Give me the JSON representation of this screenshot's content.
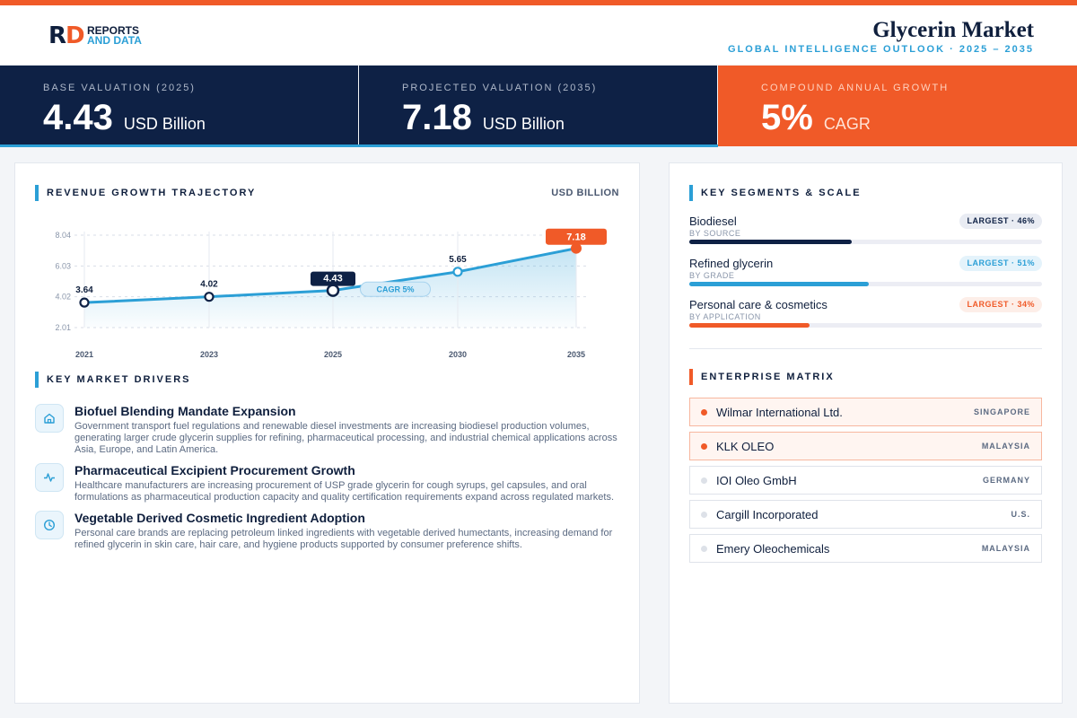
{
  "brand": {
    "logo_line1": "REPORTS",
    "logo_line2": "AND DATA"
  },
  "header": {
    "title": "Glycerin Market",
    "subtitle": "GLOBAL INTELLIGENCE OUTLOOK  ·  2025 – 2035"
  },
  "kpis": [
    {
      "label": "BASE VALUATION (2025)",
      "value": "4.43",
      "unit": "USD Billion"
    },
    {
      "label": "PROJECTED VALUATION (2035)",
      "value": "7.18",
      "unit": "USD Billion"
    },
    {
      "label": "COMPOUND ANNUAL GROWTH",
      "value": "5%",
      "unit": "CAGR"
    }
  ],
  "chart_section": {
    "title": "REVENUE GROWTH TRAJECTORY",
    "unit": "USD BILLION"
  },
  "chart_data": {
    "type": "line",
    "title": "",
    "x": [
      "2021",
      "2023",
      "2025",
      "2030",
      "2035"
    ],
    "series": [
      {
        "values": [
          3.64,
          4.02,
          4.43,
          5.65,
          7.18
        ]
      }
    ],
    "data_labels": [
      "3.64",
      "4.02",
      "4.43",
      "5.65",
      "7.18"
    ],
    "yticks": [
      "2.01",
      "4.02",
      "6.03",
      "8.04"
    ],
    "ylim": [
      2.01,
      8.04
    ],
    "grid": true,
    "annotation": "CAGR 5%",
    "colors": {
      "line": "#2b9fd6",
      "highlight": "#0e2145",
      "end": "#f05a28"
    }
  },
  "drivers_section": {
    "title": "KEY MARKET DRIVERS"
  },
  "drivers": [
    {
      "icon": "home-icon",
      "title": "Biofuel Blending Mandate Expansion",
      "desc": "Government transport fuel regulations and renewable diesel investments are increasing biodiesel production volumes, generating larger crude glycerin supplies for refining, pharmaceutical processing, and industrial chemical applications across Asia, Europe, and Latin America."
    },
    {
      "icon": "pulse-icon",
      "title": "Pharmaceutical Excipient Procurement Growth",
      "desc": "Healthcare manufacturers are increasing procurement of USP grade glycerin for cough syrups, gel capsules, and oral formulations as pharmaceutical production capacity and quality certification requirements expand across regulated markets."
    },
    {
      "icon": "clock-icon",
      "title": "Vegetable Derived Cosmetic Ingredient Adoption",
      "desc": "Personal care brands are replacing petroleum linked ingredients with vegetable derived humectants, increasing demand for refined glycerin in skin care, hair care, and hygiene products supported by consumer preference shifts."
    }
  ],
  "segments_section": {
    "title": "KEY SEGMENTS & SCALE"
  },
  "segments": [
    {
      "name": "Biodiesel",
      "sub": "BY SOURCE",
      "badge": "LARGEST · 46%",
      "share": 0.46,
      "color": "#0e2145",
      "badge_bg": "#e9ecf3",
      "badge_fg": "#0e2145"
    },
    {
      "name": "Refined glycerin",
      "sub": "BY GRADE",
      "badge": "LARGEST · 51%",
      "share": 0.51,
      "color": "#2b9fd6",
      "badge_bg": "#e4f3fb",
      "badge_fg": "#2b9fd6"
    },
    {
      "name": "Personal care & cosmetics",
      "sub": "BY APPLICATION",
      "badge": "LARGEST · 34%",
      "share": 0.34,
      "color": "#f05a28",
      "badge_bg": "#fdeee8",
      "badge_fg": "#f05a28"
    }
  ],
  "enterprise_section": {
    "title": "ENTERPRISE MATRIX"
  },
  "enterprises": [
    {
      "name": "Wilmar International Ltd.",
      "country": "SINGAPORE",
      "highlight": true
    },
    {
      "name": "KLK OLEO",
      "country": "MALAYSIA",
      "highlight": true
    },
    {
      "name": "IOI Oleo GmbH",
      "country": "GERMANY",
      "highlight": false
    },
    {
      "name": "Cargill Incorporated",
      "country": "U.S.",
      "highlight": false
    },
    {
      "name": "Emery Oleochemicals",
      "country": "MALAYSIA",
      "highlight": false
    }
  ]
}
